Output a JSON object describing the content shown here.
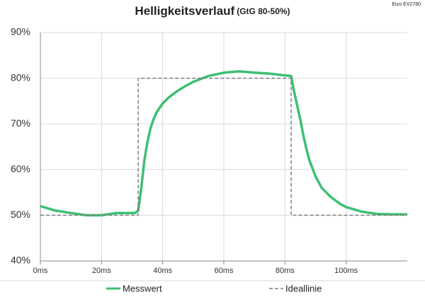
{
  "chart_data": {
    "type": "line",
    "title": "Helligkeitsverlauf",
    "subtitle": "(GtG 80-50%)",
    "annotation": "Eizo EV2780",
    "xlim": [
      0,
      120
    ],
    "ylim": [
      40,
      90
    ],
    "xticks": [
      {
        "value": 0,
        "label": "0ms"
      },
      {
        "value": 20,
        "label": "20ms"
      },
      {
        "value": 40,
        "label": "40ms"
      },
      {
        "value": 60,
        "label": "60ms"
      },
      {
        "value": 80,
        "label": "80ms"
      },
      {
        "value": 100,
        "label": "100ms"
      }
    ],
    "yticks": [
      {
        "value": 40,
        "label": "40%"
      },
      {
        "value": 50,
        "label": "50%"
      },
      {
        "value": 60,
        "label": "60%"
      },
      {
        "value": 70,
        "label": "70%"
      },
      {
        "value": 80,
        "label": "80%"
      },
      {
        "value": 90,
        "label": "90%"
      }
    ],
    "grid": true,
    "legend": "bottom",
    "series": [
      {
        "name": "Messwert",
        "color": "#3dbf72",
        "dash": false,
        "x": [
          0,
          5,
          10,
          15,
          20,
          25,
          31,
          32,
          33,
          34,
          35,
          36,
          37,
          38,
          40,
          42,
          45,
          48,
          50,
          55,
          60,
          65,
          70,
          75,
          80,
          82,
          83,
          84,
          85,
          86,
          87,
          88,
          90,
          92,
          95,
          98,
          100,
          105,
          110,
          115,
          120
        ],
        "values": [
          52,
          51,
          50.5,
          50,
          50,
          50.5,
          50.5,
          51,
          56,
          62,
          66,
          69,
          71,
          72.5,
          74.5,
          75.8,
          77.3,
          78.5,
          79.2,
          80.5,
          81.2,
          81.5,
          81.2,
          81,
          80.6,
          80.5,
          77,
          74,
          71,
          67.5,
          64.5,
          62,
          58.5,
          56,
          54,
          52.5,
          51.8,
          50.8,
          50.3,
          50.2,
          50.2
        ]
      },
      {
        "name": "Ideallinie",
        "color": "#7f7f7f",
        "dash": true,
        "x": [
          0,
          32,
          32,
          82,
          82,
          120
        ],
        "values": [
          50,
          50,
          80,
          80,
          50,
          50
        ]
      }
    ]
  }
}
